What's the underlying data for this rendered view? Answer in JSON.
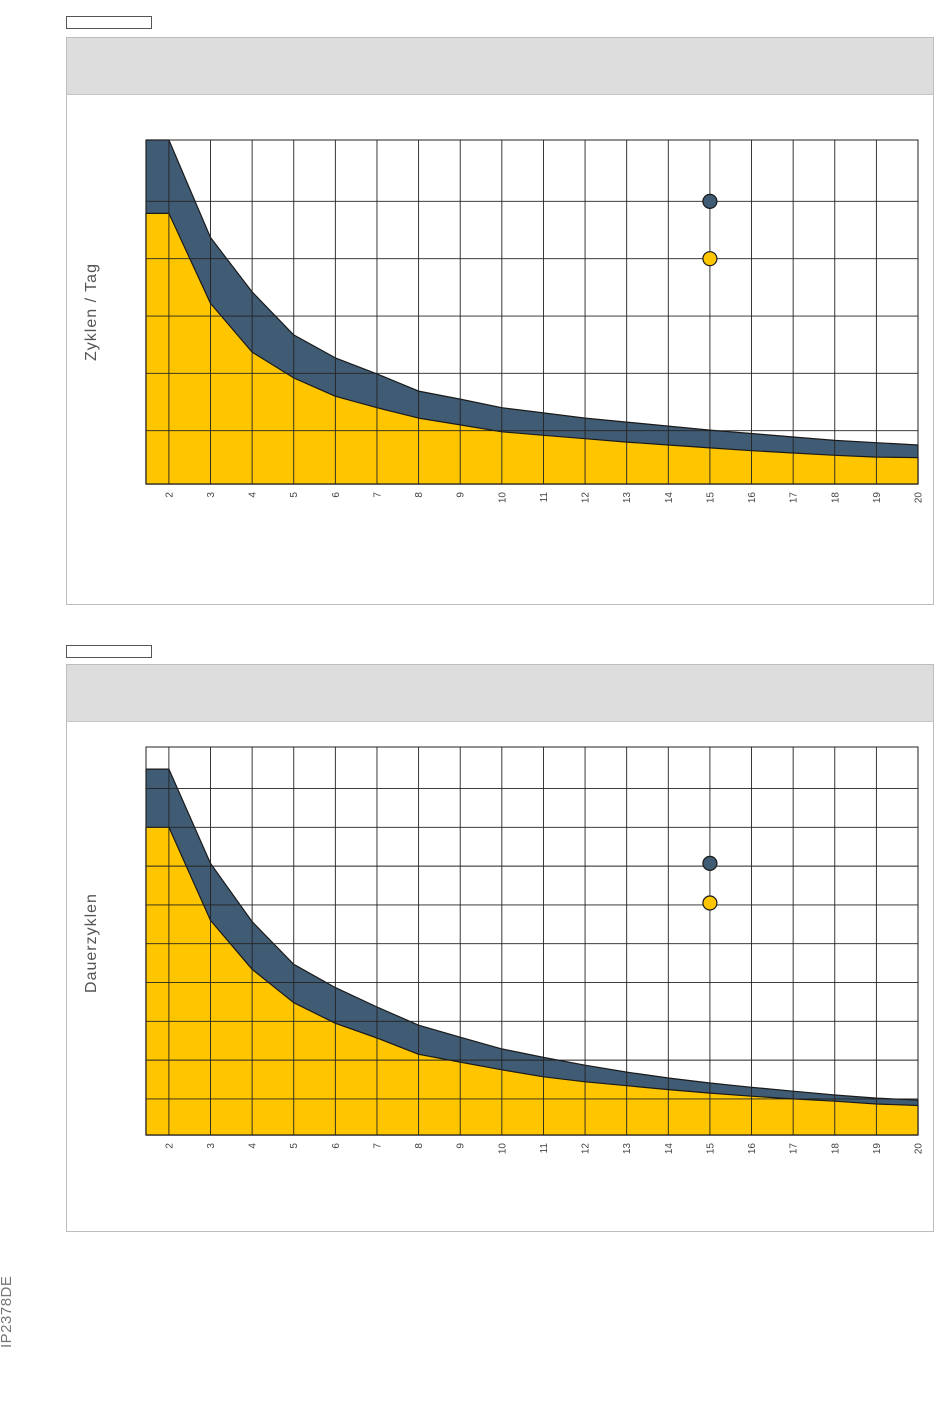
{
  "doc_code": "IP2378DE",
  "colors": {
    "yellow": "#ffc600",
    "blue": "#405c74",
    "grid": "#222222"
  },
  "chart_data": [
    {
      "type": "area",
      "title": "",
      "ylabel": "Zyklen / Tag",
      "xlabel": "",
      "x_ticks": [
        "2",
        "3",
        "4",
        "5",
        "6",
        "7",
        "8",
        "9",
        "10",
        "11",
        "12",
        "13",
        "14",
        "15",
        "16",
        "17",
        "18",
        "19",
        "20"
      ],
      "xlim": [
        1.45,
        20
      ],
      "ylim": [
        0,
        6
      ],
      "y_gridlines": [
        0.93,
        1.93,
        2.93,
        3.93,
        4.93,
        6
      ],
      "series": [
        {
          "color": "yellow",
          "x": [
            1.45,
            2,
            3,
            4,
            5,
            6,
            7,
            8,
            9,
            10,
            11,
            12,
            13,
            14,
            15,
            16,
            17,
            18,
            19,
            20
          ],
          "values": [
            4.72,
            4.72,
            3.15,
            2.3,
            1.85,
            1.53,
            1.33,
            1.15,
            1.03,
            0.91,
            0.85,
            0.79,
            0.73,
            0.68,
            0.63,
            0.58,
            0.54,
            0.5,
            0.47,
            0.46
          ]
        },
        {
          "color": "blue",
          "x": [
            1.45,
            2,
            3,
            4,
            5,
            6,
            7,
            8,
            9,
            10,
            11,
            12,
            13,
            14,
            15,
            16,
            17,
            18,
            19,
            20
          ],
          "values": [
            6.0,
            6.0,
            4.3,
            3.35,
            2.6,
            2.2,
            1.92,
            1.62,
            1.48,
            1.33,
            1.24,
            1.15,
            1.08,
            1.01,
            0.94,
            0.88,
            0.82,
            0.76,
            0.72,
            0.68
          ]
        }
      ],
      "markers": [
        {
          "x": 15,
          "y": 4.93,
          "color": "blue"
        },
        {
          "x": 15,
          "y": 3.93,
          "color": "yellow"
        }
      ]
    },
    {
      "type": "area",
      "title": "",
      "ylabel": "Dauerzyklen",
      "xlabel": "",
      "x_ticks": [
        "2",
        "3",
        "4",
        "5",
        "6",
        "7",
        "8",
        "9",
        "10",
        "11",
        "12",
        "13",
        "14",
        "15",
        "16",
        "17",
        "18",
        "19",
        "20"
      ],
      "xlim": [
        1.45,
        20
      ],
      "ylim": [
        0,
        10
      ],
      "y_gridlines": [
        0.93,
        1.93,
        2.93,
        3.93,
        4.93,
        5.93,
        6.93,
        7.93,
        8.93,
        10
      ],
      "series": [
        {
          "color": "yellow",
          "x": [
            1.45,
            2,
            3,
            4,
            5,
            6,
            7,
            8,
            9,
            10,
            11,
            12,
            13,
            14,
            15,
            16,
            17,
            18,
            19,
            20
          ],
          "values": [
            7.93,
            7.93,
            5.53,
            4.27,
            3.41,
            2.88,
            2.5,
            2.08,
            1.88,
            1.68,
            1.5,
            1.37,
            1.27,
            1.17,
            1.08,
            1.0,
            0.93,
            0.87,
            0.8,
            0.76
          ]
        },
        {
          "color": "blue",
          "x": [
            1.45,
            2,
            3,
            4,
            5,
            6,
            7,
            8,
            9,
            10,
            11,
            12,
            13,
            14,
            15,
            16,
            17,
            18,
            19,
            20
          ],
          "values": [
            9.43,
            9.43,
            7.0,
            5.5,
            4.4,
            3.8,
            3.3,
            2.83,
            2.52,
            2.22,
            2.0,
            1.8,
            1.62,
            1.47,
            1.34,
            1.23,
            1.13,
            1.03,
            0.95,
            0.9
          ]
        }
      ],
      "markers": [
        {
          "x": 15,
          "y": 7.0,
          "color": "blue"
        },
        {
          "x": 15,
          "y": 5.98,
          "color": "yellow"
        }
      ]
    }
  ]
}
